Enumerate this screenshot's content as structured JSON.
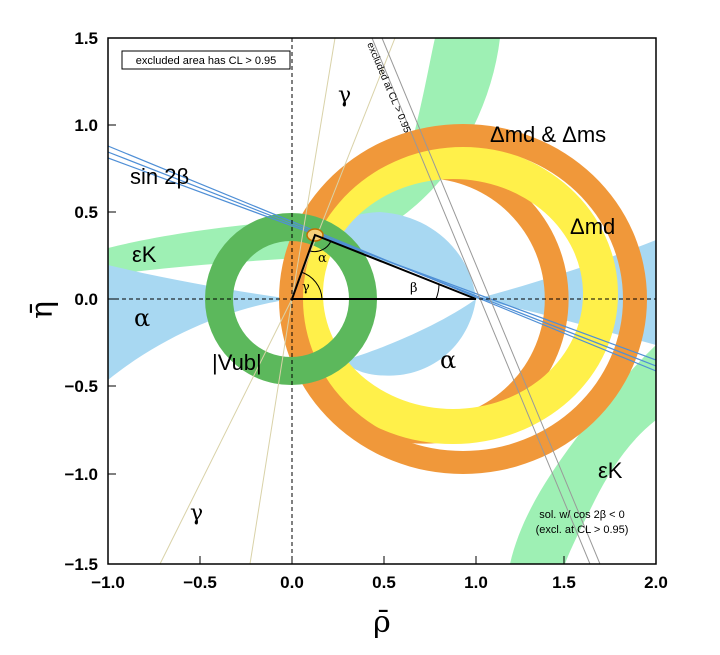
{
  "chart_data": {
    "type": "scatter",
    "xlabel": "ρ̄",
    "ylabel": "η̄",
    "xlim": [
      -1.0,
      2.0
    ],
    "ylim": [
      -1.5,
      1.5
    ],
    "grid": false,
    "x_ticks": [
      "−1.0",
      "−0.5",
      "0.0",
      "0.5",
      "1.0",
      "1.5",
      "2.0"
    ],
    "y_ticks": [
      "1.5",
      "1.0",
      "0.5",
      "0.0",
      "−0.5",
      "−1.0",
      "−1.5"
    ],
    "apex": {
      "rho": 0.13,
      "eta": 0.35
    },
    "triangle_vertices": [
      [
        0,
        0
      ],
      [
        1,
        0
      ],
      [
        0.13,
        0.35
      ]
    ],
    "constraints": [
      {
        "name": "|Vub|",
        "shape": "annulus",
        "center": [
          0,
          0
        ],
        "r_inner": 0.32,
        "r_outer": 0.47,
        "color": "#5cb85c"
      },
      {
        "name": "Δmd & Δms",
        "shape": "annulus",
        "center": [
          1,
          0
        ],
        "r_inner": 0.66,
        "r_outer": 0.79,
        "color": "#f0983a"
      },
      {
        "name": "Δmd",
        "shape": "annulus",
        "center": [
          1,
          0
        ],
        "r_inner": 0.56,
        "r_outer": 0.76,
        "color": "#fff04a"
      },
      {
        "name": "sin 2β",
        "shape": "lines",
        "slope": -0.39,
        "color": "#4f8fd6"
      },
      {
        "name": "α",
        "shape": "lobes",
        "color": "#a8d8f2"
      },
      {
        "name": "εK",
        "shape": "hyperbola",
        "color": "#9ef0b4"
      },
      {
        "name": "γ",
        "shape": "rays",
        "color": "#d9d2a8"
      }
    ],
    "annotations": {
      "excluded_area": "excluded area has CL > 0.95",
      "excluded_diag": "excluded at CL > 0.95",
      "dmd_dms": "Δmd & Δms",
      "dmd": "Δmd",
      "sin2b": "sin 2β",
      "epsk_left": "εK",
      "epsk_right": "εK",
      "alpha_left": "α",
      "alpha_right": "α",
      "gamma_top": "γ",
      "gamma_bottom": "γ",
      "vub": "|Vub|",
      "angle_alpha": "α",
      "angle_beta": "β",
      "angle_gamma": "γ",
      "sol_line1": "sol. w/ cos 2β < 0",
      "sol_line2": "(excl. at CL > 0.95)"
    }
  }
}
